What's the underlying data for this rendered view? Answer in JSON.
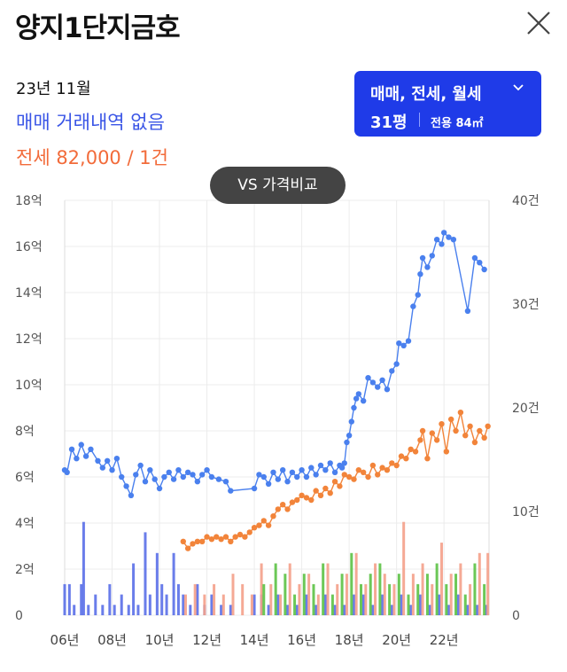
{
  "header": {
    "title": "양지1단지금호",
    "close_icon": "close-icon"
  },
  "info": {
    "date": "23년 11월",
    "sale_text": "매매 거래내역 없음",
    "jeonse_text": "전세 82,000 / 1건"
  },
  "filter": {
    "types": "매매, 전세, 월세",
    "chevron_icon": "chevron-down-icon",
    "pyeong": "31평",
    "area": "전용 84㎡"
  },
  "vs_button": "VS 가격비교",
  "colors": {
    "sale": "#4a80ee",
    "jeonse": "#f2843a",
    "bar_sale": "#5a6fe8",
    "bar_jeonse": "#f4a08a",
    "bar_monthly": "#5cc245",
    "filter_bg": "#1f3be8"
  },
  "chart_data": {
    "type": "line",
    "x_tick_labels": [
      "06년",
      "08년",
      "10년",
      "12년",
      "14년",
      "16년",
      "18년",
      "20년",
      "22년"
    ],
    "x_ticks": [
      2006,
      2008,
      2010,
      2012,
      2014,
      2016,
      2018,
      2020,
      2022
    ],
    "xlim": [
      2006,
      2023.9
    ],
    "y_left": {
      "ticks": [
        0,
        2,
        4,
        6,
        8,
        10,
        12,
        14,
        16,
        18
      ],
      "tick_labels": [
        "0",
        "2억",
        "4억",
        "6억",
        "8억",
        "10억",
        "12억",
        "14억",
        "16억",
        "18억"
      ],
      "ylim": [
        0,
        18
      ],
      "unit": "억"
    },
    "y_right": {
      "ticks": [
        0,
        10,
        20,
        30,
        40
      ],
      "tick_labels": [
        "0",
        "10건",
        "20건",
        "30건",
        "40건"
      ],
      "ylim": [
        0,
        40
      ],
      "unit": "건"
    },
    "grid": true,
    "series": [
      {
        "key": "sale",
        "axis": "left",
        "kind": "line",
        "x": [
          2006.0,
          2006.1,
          2006.3,
          2006.5,
          2006.7,
          2006.9,
          2007.1,
          2007.4,
          2007.6,
          2007.8,
          2008.0,
          2008.2,
          2008.4,
          2008.6,
          2008.8,
          2009.0,
          2009.2,
          2009.4,
          2009.6,
          2009.8,
          2010.0,
          2010.2,
          2010.4,
          2010.6,
          2010.8,
          2011.0,
          2011.2,
          2011.4,
          2011.6,
          2011.8,
          2012.0,
          2012.2,
          2012.5,
          2012.8,
          2013.0,
          2014.0,
          2014.2,
          2014.4,
          2014.6,
          2014.8,
          2015.0,
          2015.2,
          2015.4,
          2015.6,
          2015.8,
          2016.0,
          2016.2,
          2016.4,
          2016.6,
          2016.8,
          2017.0,
          2017.2,
          2017.4,
          2017.6,
          2017.7,
          2017.8,
          2017.9,
          2018.0,
          2018.1,
          2018.2,
          2018.3,
          2018.4,
          2018.6,
          2018.8,
          2019.0,
          2019.2,
          2019.4,
          2019.6,
          2019.8,
          2020.0,
          2020.1,
          2020.3,
          2020.5,
          2020.7,
          2020.9,
          2021.0,
          2021.1,
          2021.3,
          2021.5,
          2021.7,
          2021.9,
          2022.0,
          2022.2,
          2022.4,
          2023.0,
          2023.3,
          2023.5,
          2023.7
        ],
        "y": [
          6.3,
          6.2,
          7.2,
          6.8,
          7.4,
          6.9,
          7.2,
          6.7,
          6.4,
          6.7,
          6.3,
          6.8,
          6.0,
          5.6,
          5.2,
          6.1,
          6.5,
          5.8,
          6.3,
          5.9,
          5.5,
          6.0,
          6.2,
          5.9,
          6.3,
          6.0,
          6.2,
          6.1,
          5.8,
          6.1,
          6.3,
          6.0,
          5.9,
          5.8,
          5.4,
          5.5,
          6.1,
          6.0,
          5.7,
          6.2,
          5.9,
          6.3,
          5.8,
          6.2,
          6.0,
          6.3,
          6.0,
          6.4,
          6.1,
          6.5,
          6.3,
          6.6,
          6.2,
          6.5,
          6.4,
          6.6,
          7.5,
          7.8,
          8.4,
          9.0,
          9.4,
          9.6,
          9.3,
          10.3,
          10.1,
          9.9,
          10.2,
          9.8,
          10.6,
          10.9,
          11.8,
          11.7,
          11.9,
          13.4,
          13.9,
          14.8,
          15.5,
          15.1,
          15.6,
          16.3,
          16.1,
          16.6,
          16.4,
          16.3,
          13.2,
          15.5,
          15.3,
          15.0
        ]
      },
      {
        "key": "jeonse",
        "axis": "left",
        "kind": "line",
        "x": [
          2011.0,
          2011.2,
          2011.4,
          2011.6,
          2011.8,
          2012.0,
          2012.2,
          2012.4,
          2012.6,
          2012.8,
          2013.0,
          2013.2,
          2013.4,
          2013.6,
          2013.8,
          2014.0,
          2014.2,
          2014.4,
          2014.6,
          2014.8,
          2015.0,
          2015.2,
          2015.4,
          2015.6,
          2015.8,
          2016.0,
          2016.2,
          2016.4,
          2016.6,
          2016.8,
          2017.0,
          2017.2,
          2017.4,
          2017.6,
          2017.8,
          2018.0,
          2018.2,
          2018.4,
          2018.6,
          2018.8,
          2019.0,
          2019.2,
          2019.4,
          2019.6,
          2019.8,
          2020.0,
          2020.2,
          2020.4,
          2020.6,
          2020.8,
          2021.0,
          2021.1,
          2021.3,
          2021.5,
          2021.7,
          2021.9,
          2022.1,
          2022.3,
          2022.5,
          2022.7,
          2022.9,
          2023.1,
          2023.3,
          2023.5,
          2023.7,
          2023.85
        ],
        "y": [
          3.2,
          2.9,
          3.1,
          3.2,
          3.2,
          3.4,
          3.3,
          3.4,
          3.3,
          3.4,
          3.2,
          3.4,
          3.5,
          3.4,
          3.6,
          3.8,
          3.9,
          4.1,
          3.9,
          4.3,
          4.6,
          4.8,
          4.6,
          4.9,
          5.0,
          5.2,
          5.1,
          5.0,
          5.4,
          5.2,
          5.5,
          5.3,
          5.8,
          5.6,
          6.1,
          6.0,
          5.9,
          6.3,
          6.2,
          6.0,
          6.5,
          6.1,
          6.4,
          6.3,
          6.6,
          6.5,
          6.9,
          6.8,
          7.2,
          7.1,
          7.6,
          8.0,
          6.8,
          7.9,
          7.6,
          8.3,
          7.1,
          8.5,
          8.0,
          8.8,
          7.8,
          8.2,
          7.5,
          8.0,
          7.7,
          8.2
        ]
      },
      {
        "key": "bar_sale",
        "axis": "right",
        "kind": "bar",
        "x": [
          2006.0,
          2006.2,
          2006.4,
          2006.7,
          2006.8,
          2007.0,
          2007.3,
          2007.6,
          2007.9,
          2008.1,
          2008.4,
          2008.7,
          2008.9,
          2009.1,
          2009.4,
          2009.6,
          2009.9,
          2010.1,
          2010.3,
          2010.6,
          2010.8,
          2011.0,
          2011.3,
          2011.6,
          2011.9,
          2012.2,
          2012.6,
          2013.0,
          2014.0,
          2014.3,
          2014.6,
          2015.0,
          2015.4,
          2015.8,
          2016.2,
          2016.6,
          2017.0,
          2017.4,
          2017.8,
          2018.2,
          2018.6,
          2019.0,
          2019.4,
          2019.8,
          2020.2,
          2020.6,
          2021.0,
          2021.4,
          2021.8,
          2022.2,
          2022.6,
          2023.0,
          2023.4,
          2023.8
        ],
        "y": [
          3,
          3,
          1,
          3,
          9,
          1,
          2,
          1,
          3,
          1,
          2,
          1,
          5,
          1,
          8,
          2,
          6,
          3,
          2,
          6,
          3,
          2,
          1,
          3,
          1,
          2,
          1,
          1,
          2,
          2,
          1,
          2,
          1,
          1,
          2,
          1,
          2,
          1,
          1,
          2,
          2,
          1,
          2,
          1,
          2,
          1,
          2,
          1,
          2,
          1,
          2,
          1,
          1,
          1
        ]
      },
      {
        "key": "bar_jeonse",
        "axis": "right",
        "kind": "bar",
        "x": [
          2011.1,
          2011.5,
          2011.9,
          2012.3,
          2012.7,
          2013.1,
          2013.5,
          2013.9,
          2014.3,
          2014.7,
          2015.1,
          2015.5,
          2015.9,
          2016.3,
          2016.7,
          2017.1,
          2017.5,
          2017.9,
          2018.3,
          2018.7,
          2019.1,
          2019.5,
          2019.9,
          2020.3,
          2020.7,
          2021.1,
          2021.5,
          2021.9,
          2022.3,
          2022.7,
          2023.1,
          2023.5,
          2023.85
        ],
        "y": [
          2,
          3,
          2,
          3,
          2,
          4,
          3,
          2,
          5,
          3,
          2,
          5,
          3,
          4,
          2,
          5,
          3,
          4,
          6,
          3,
          5,
          4,
          3,
          9,
          4,
          5,
          3,
          7,
          4,
          5,
          3,
          6,
          6
        ]
      },
      {
        "key": "bar_monthly",
        "axis": "right",
        "kind": "bar",
        "x": [
          2014.4,
          2014.9,
          2015.3,
          2015.7,
          2016.1,
          2016.5,
          2016.9,
          2017.3,
          2017.7,
          2018.1,
          2018.5,
          2018.9,
          2019.3,
          2019.7,
          2020.1,
          2020.5,
          2020.9,
          2021.3,
          2021.7,
          2022.1,
          2022.5,
          2022.9,
          2023.3,
          2023.7
        ],
        "y": [
          3,
          5,
          4,
          2,
          4,
          3,
          5,
          2,
          4,
          6,
          3,
          4,
          5,
          3,
          4,
          2,
          3,
          4,
          5,
          3,
          4,
          2,
          5,
          3
        ]
      }
    ]
  }
}
